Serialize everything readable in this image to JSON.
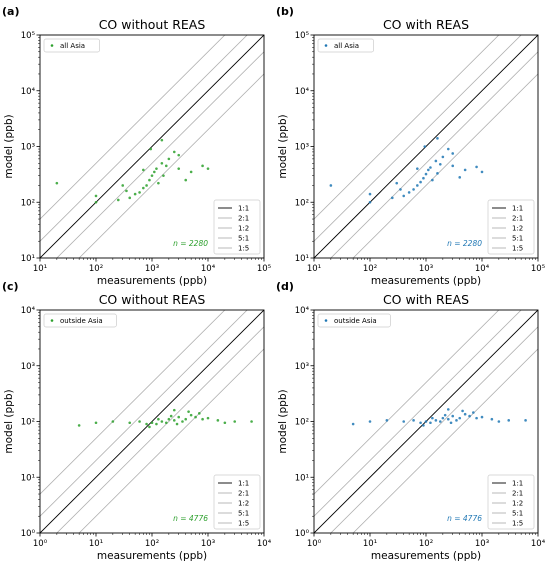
{
  "figure": {
    "colors": {
      "green": "#2ca02c",
      "blue": "#1f77b4",
      "one_to_one": "#000000",
      "ratio_lines": "#b0b0b0"
    },
    "ratio_legend": [
      "1:1",
      "2:1",
      "1:2",
      "5:1",
      "1:5"
    ]
  },
  "chart_data": [
    {
      "panel": "(a)",
      "type": "scatter",
      "title": "CO without REAS",
      "xlabel": "measurements (ppb)",
      "ylabel": "model (ppb)",
      "xscale": "log",
      "yscale": "log",
      "xlim": [
        10,
        100000
      ],
      "ylim": [
        10,
        100000
      ],
      "xticks": [
        "10¹",
        "10²",
        "10³",
        "10⁴",
        "10⁵"
      ],
      "yticks": [
        "10¹",
        "10²",
        "10³",
        "10⁴",
        "10⁵"
      ],
      "series": [
        {
          "name": "all Asia",
          "color": "#2ca02c",
          "n": "2280",
          "points": [
            [
              1000,
              300
            ],
            [
              800,
              200
            ],
            [
              1200,
              400
            ],
            [
              600,
              150
            ],
            [
              1500,
              500
            ],
            [
              900,
              250
            ],
            [
              2000,
              600
            ],
            [
              700,
              180
            ],
            [
              1100,
              350
            ],
            [
              500,
              140
            ],
            [
              1300,
              220
            ],
            [
              2500,
              800
            ],
            [
              400,
              120
            ],
            [
              3000,
              700
            ],
            [
              1800,
              450
            ],
            [
              350,
              160
            ],
            [
              950,
              900
            ],
            [
              250,
              110
            ],
            [
              1600,
              300
            ],
            [
              700,
              380
            ],
            [
              100,
              100
            ],
            [
              100,
              130
            ],
            [
              20,
              220
            ],
            [
              3000,
              400
            ],
            [
              5000,
              350
            ],
            [
              8000,
              450
            ],
            [
              10000,
              400
            ],
            [
              4000,
              250
            ],
            [
              1500,
              1300
            ],
            [
              300,
              200
            ]
          ]
        }
      ],
      "annotation": "n = 2280"
    },
    {
      "panel": "(b)",
      "type": "scatter",
      "title": "CO with REAS",
      "xlabel": "measurements (ppb)",
      "ylabel": "model (ppb)",
      "xscale": "log",
      "yscale": "log",
      "xlim": [
        10,
        100000
      ],
      "ylim": [
        10,
        100000
      ],
      "xticks": [
        "10¹",
        "10²",
        "10³",
        "10⁴",
        "10⁵"
      ],
      "yticks": [
        "10¹",
        "10²",
        "10³",
        "10⁴",
        "10⁵"
      ],
      "series": [
        {
          "name": "all Asia",
          "color": "#1f77b4",
          "n": "2280",
          "points": [
            [
              1000,
              320
            ],
            [
              800,
              230
            ],
            [
              1200,
              420
            ],
            [
              600,
              170
            ],
            [
              1500,
              550
            ],
            [
              900,
              270
            ],
            [
              2000,
              650
            ],
            [
              700,
              200
            ],
            [
              1100,
              380
            ],
            [
              500,
              150
            ],
            [
              1300,
              250
            ],
            [
              2500,
              900
            ],
            [
              400,
              130
            ],
            [
              3000,
              750
            ],
            [
              1800,
              480
            ],
            [
              350,
              170
            ],
            [
              950,
              1000
            ],
            [
              250,
              120
            ],
            [
              1600,
              330
            ],
            [
              700,
              400
            ],
            [
              100,
              100
            ],
            [
              100,
              140
            ],
            [
              20,
              200
            ],
            [
              3000,
              450
            ],
            [
              5000,
              380
            ],
            [
              8000,
              430
            ],
            [
              10000,
              350
            ],
            [
              4000,
              280
            ],
            [
              1600,
              1400
            ],
            [
              300,
              220
            ]
          ]
        }
      ],
      "annotation": "n = 2280"
    },
    {
      "panel": "(c)",
      "type": "scatter",
      "title": "CO without REAS",
      "xlabel": "measurements (ppb)",
      "ylabel": "model (ppb)",
      "xscale": "log",
      "yscale": "log",
      "xlim": [
        1,
        10000
      ],
      "ylim": [
        1,
        10000
      ],
      "xticks": [
        "10⁰",
        "10¹",
        "10²",
        "10³",
        "10⁴"
      ],
      "yticks": [
        "10⁰",
        "10¹",
        "10²",
        "10³",
        "10⁴"
      ],
      "series": [
        {
          "name": "outside Asia",
          "color": "#2ca02c",
          "n": "4776",
          "points": [
            [
              150,
              100
            ],
            [
              200,
              110
            ],
            [
              250,
              105
            ],
            [
              300,
              120
            ],
            [
              180,
              95
            ],
            [
              120,
              90
            ],
            [
              400,
              110
            ],
            [
              500,
              130
            ],
            [
              100,
              95
            ],
            [
              350,
              100
            ],
            [
              220,
              125
            ],
            [
              600,
              120
            ],
            [
              800,
              110
            ],
            [
              1000,
              115
            ],
            [
              80,
              90
            ],
            [
              60,
              100
            ],
            [
              40,
              95
            ],
            [
              20,
              100
            ],
            [
              10,
              95
            ],
            [
              5,
              85
            ],
            [
              1500,
              105
            ],
            [
              3000,
              100
            ],
            [
              700,
              140
            ],
            [
              450,
              150
            ],
            [
              280,
              90
            ],
            [
              130,
              110
            ],
            [
              90,
              80
            ],
            [
              2000,
              95
            ],
            [
              6000,
              100
            ],
            [
              250,
              160
            ]
          ]
        }
      ],
      "annotation": "n = 4776"
    },
    {
      "panel": "(d)",
      "type": "scatter",
      "title": "CO with REAS",
      "xlabel": "measurements (ppb)",
      "ylabel": "model (ppb)",
      "xscale": "log",
      "yscale": "log",
      "xlim": [
        1,
        10000
      ],
      "ylim": [
        1,
        10000
      ],
      "xticks": [
        "10⁰",
        "10¹",
        "10²",
        "10³",
        "10⁴"
      ],
      "yticks": [
        "10⁰",
        "10¹",
        "10²",
        "10³",
        "10⁴"
      ],
      "series": [
        {
          "name": "outside Asia",
          "color": "#1f77b4",
          "n": "4776",
          "points": [
            [
              150,
              105
            ],
            [
              200,
              115
            ],
            [
              250,
              110
            ],
            [
              300,
              125
            ],
            [
              180,
              100
            ],
            [
              120,
              95
            ],
            [
              400,
              115
            ],
            [
              500,
              135
            ],
            [
              100,
              100
            ],
            [
              350,
              105
            ],
            [
              220,
              130
            ],
            [
              600,
              125
            ],
            [
              800,
              115
            ],
            [
              1000,
              120
            ],
            [
              80,
              95
            ],
            [
              60,
              105
            ],
            [
              40,
              100
            ],
            [
              20,
              105
            ],
            [
              10,
              100
            ],
            [
              5,
              90
            ],
            [
              1500,
              110
            ],
            [
              3000,
              105
            ],
            [
              700,
              145
            ],
            [
              450,
              155
            ],
            [
              280,
              95
            ],
            [
              130,
              115
            ],
            [
              90,
              85
            ],
            [
              2000,
              100
            ],
            [
              6000,
              105
            ],
            [
              250,
              165
            ]
          ]
        }
      ],
      "annotation": "n = 4776"
    }
  ]
}
